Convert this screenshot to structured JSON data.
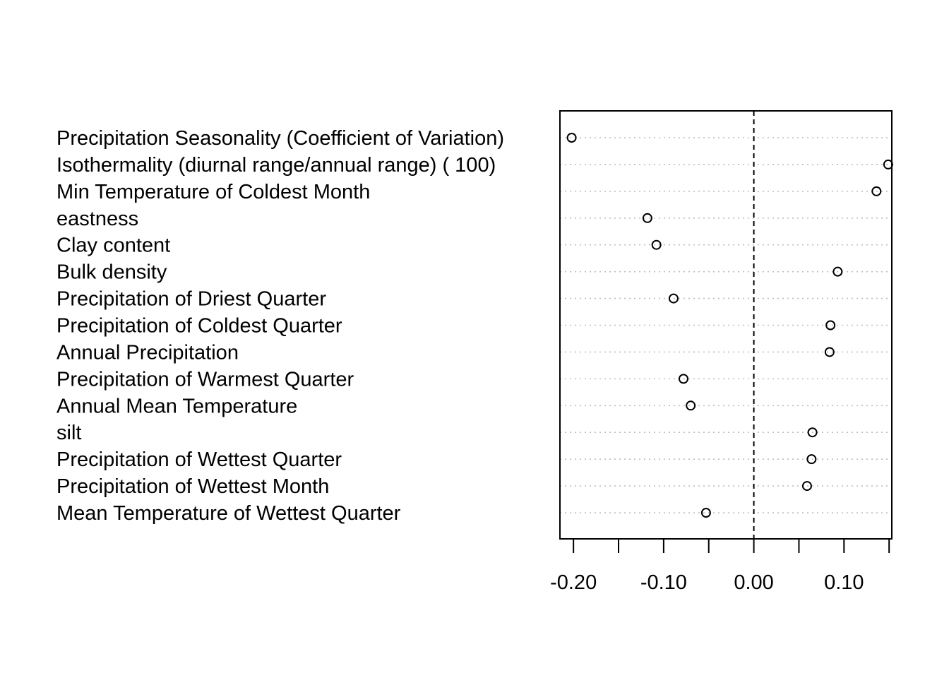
{
  "chart_data": {
    "type": "dotchart",
    "categories": [
      "Precipitation Seasonality (Coefficient of Variation)",
      "Isothermality (diurnal range/annual range) (  100)",
      "Min Temperature of Coldest Month",
      "eastness",
      "Clay content",
      "Bulk density",
      "Precipitation of Driest Quarter",
      "Precipitation of Coldest Quarter",
      "Annual Precipitation",
      "Precipitation of Warmest Quarter",
      "Annual Mean Temperature",
      "silt",
      "Precipitation of Wettest Quarter",
      "Precipitation of Wettest Month",
      "Mean Temperature of Wettest Quarter"
    ],
    "values": [
      -0.202,
      0.149,
      0.136,
      -0.118,
      -0.108,
      0.093,
      -0.089,
      0.085,
      0.084,
      -0.078,
      -0.07,
      0.065,
      0.064,
      0.059,
      -0.053
    ],
    "xlim": [
      -0.215,
      0.153
    ],
    "xticks": [
      -0.2,
      -0.15,
      -0.1,
      -0.05,
      0.0,
      0.05,
      0.1,
      0.15
    ],
    "xtick_labels": [
      "-0.20",
      "",
      "-0.10",
      "",
      "0.00",
      "",
      "0.10",
      ""
    ],
    "reference_line": 0.0,
    "reference_line_style": "dashed",
    "row_gridlines": "dotted",
    "marker": "open-circle",
    "title": "",
    "xlabel": "",
    "ylabel": "",
    "colors": {
      "marker": "#000000",
      "axis": "#000000",
      "gridline": "#bebebe"
    }
  }
}
